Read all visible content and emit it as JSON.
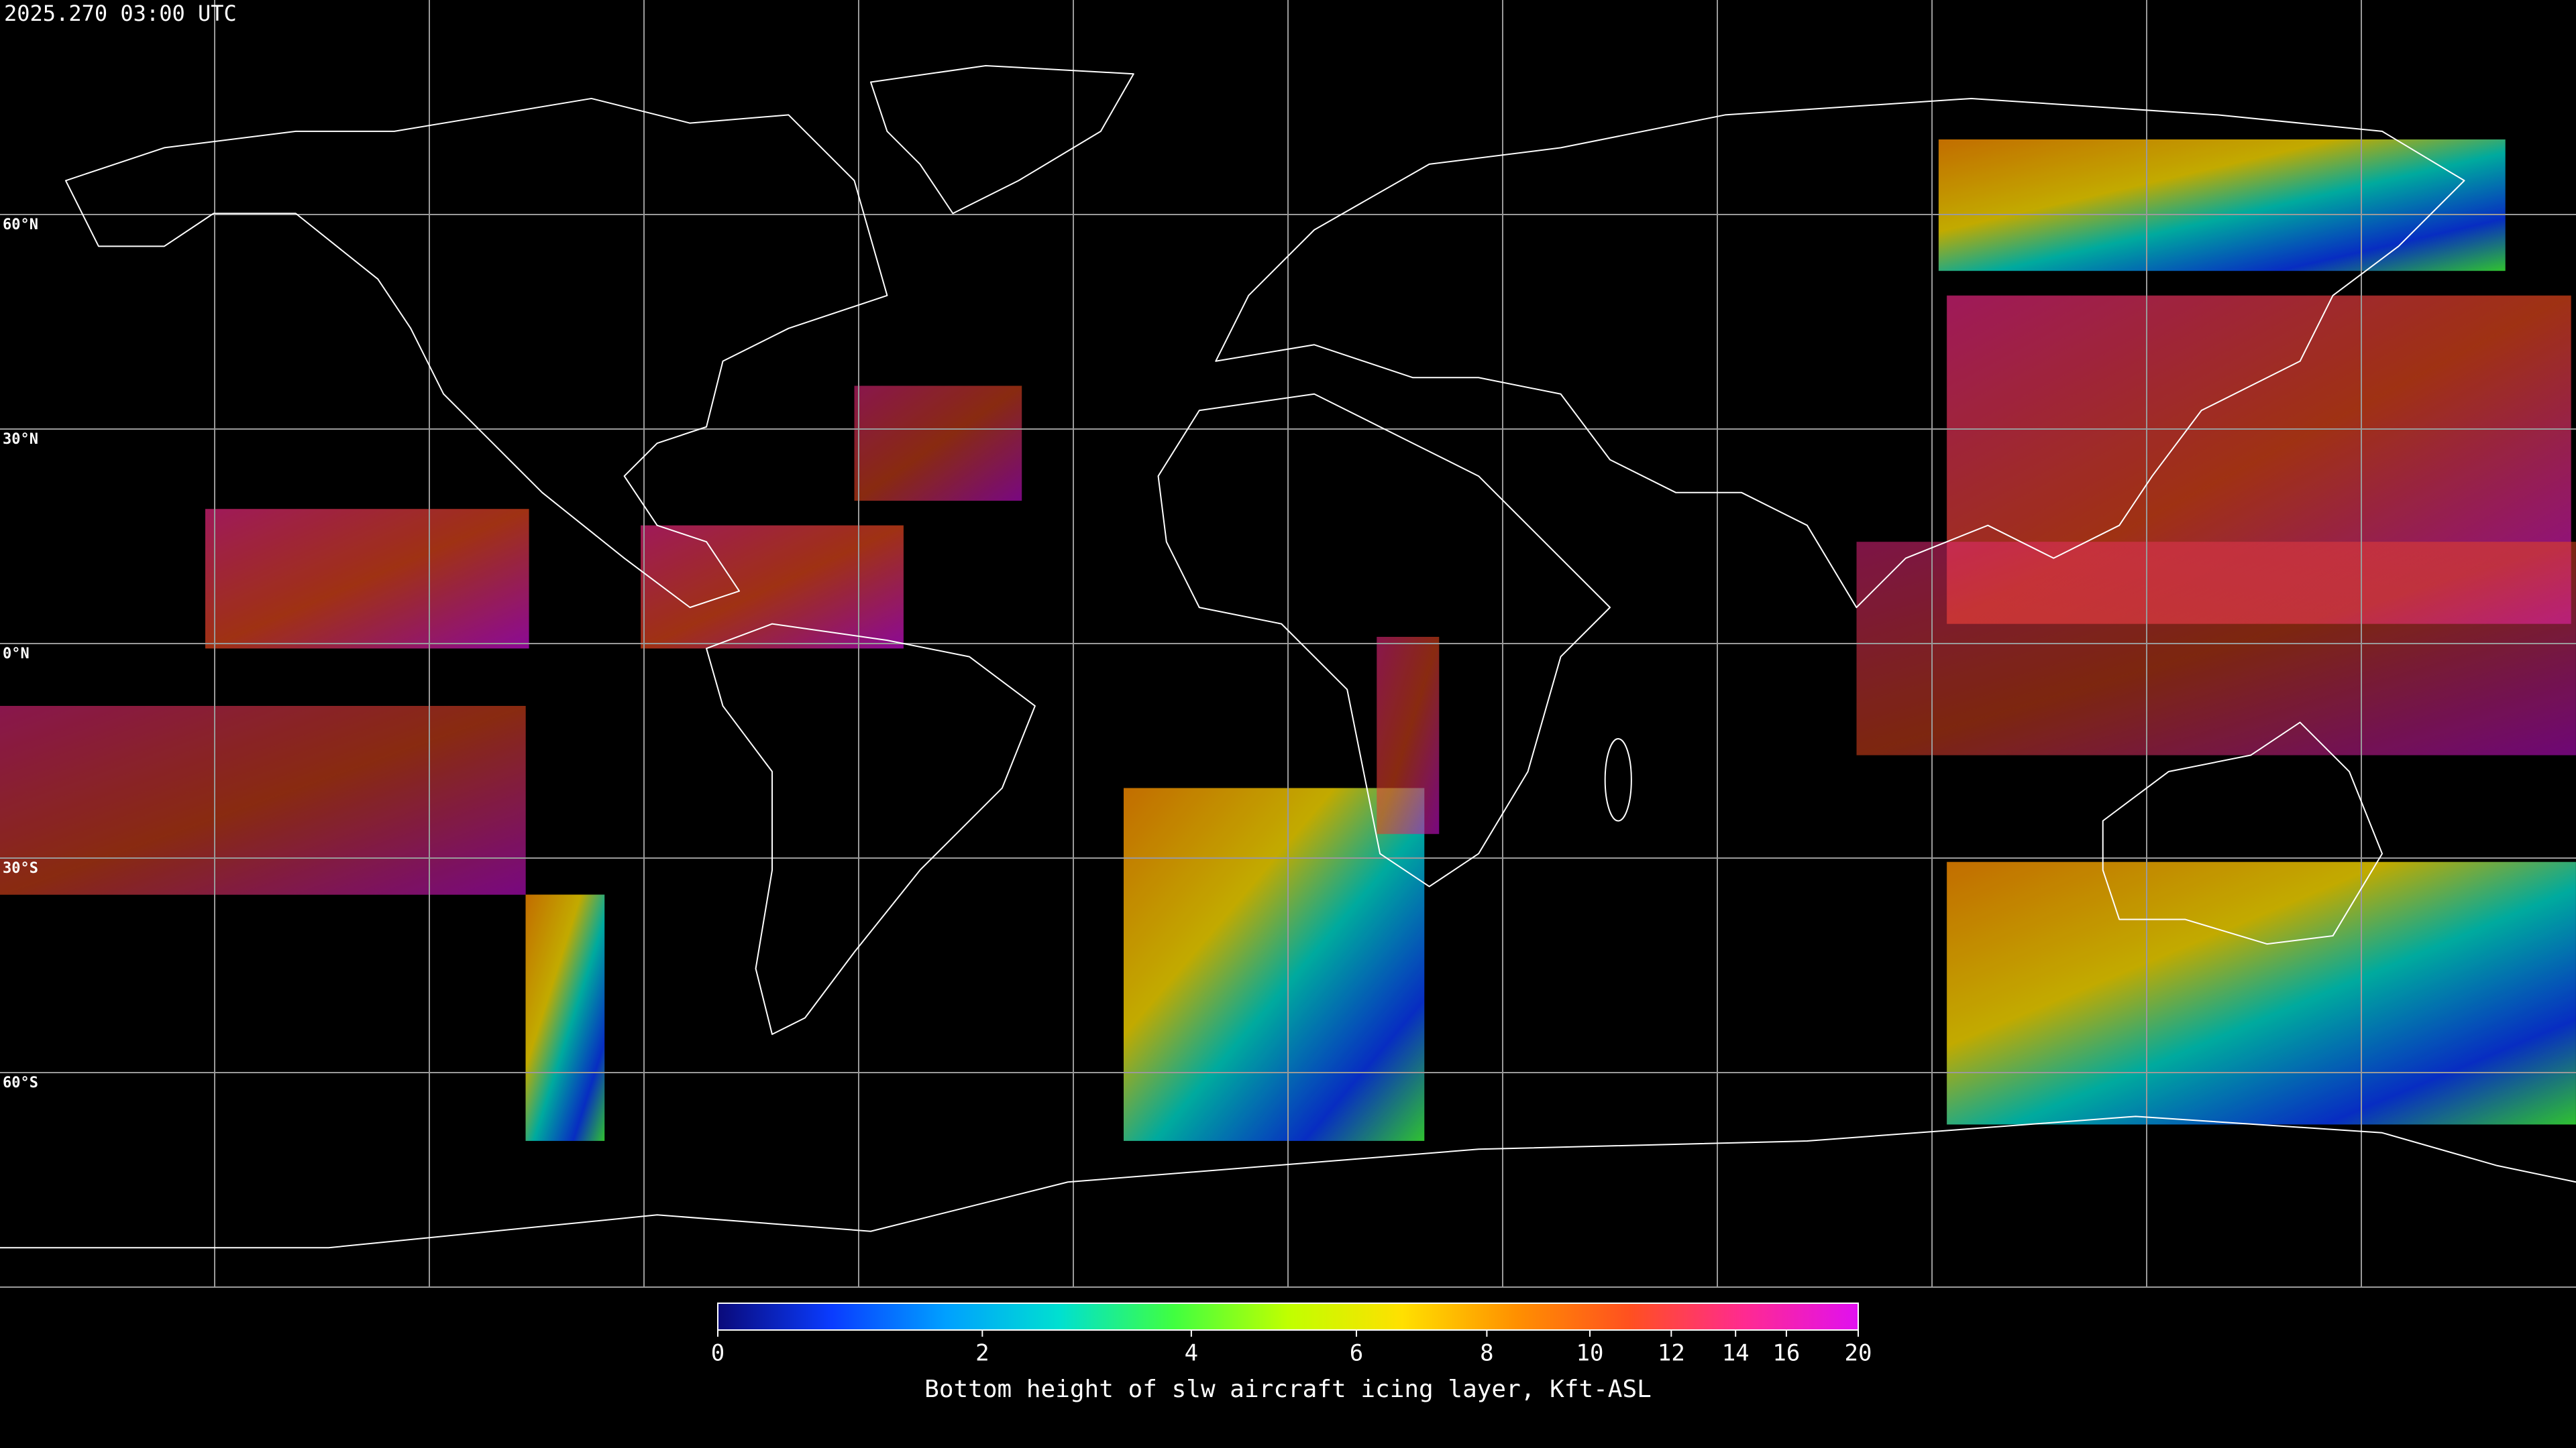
{
  "header": {
    "title": "2025.270 03:00 UTC"
  },
  "map": {
    "lat_labels": [
      "60°N",
      "30°N",
      "0°N",
      "30°S",
      "60°S"
    ],
    "grid": true
  },
  "colorbar": {
    "label": "Bottom height of slw aircraft icing layer, Kft-ASL",
    "range": [
      0,
      20
    ],
    "ticks": [
      0,
      2,
      4,
      6,
      8,
      10,
      12,
      14,
      16,
      20
    ],
    "colors": [
      "#0a0a7a",
      "#0a3cff",
      "#00a0ff",
      "#00e0d0",
      "#40ff40",
      "#c0ff00",
      "#ffe000",
      "#ff9000",
      "#ff5020",
      "#ff2a90",
      "#e010f0"
    ]
  }
}
